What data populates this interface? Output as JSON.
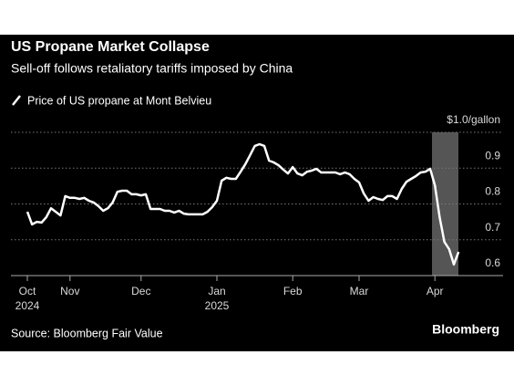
{
  "chart_data": {
    "type": "line",
    "title": "US Propane Market Collapse",
    "subtitle": "Sell-off follows retaliatory tariffs imposed by China",
    "source": "Source: Bloomberg Fair Value",
    "brand": "Bloomberg",
    "categories": [
      "Oct\n2024",
      null,
      null,
      null,
      null,
      null,
      null,
      null,
      null,
      "Nov",
      null,
      null,
      null,
      null,
      null,
      null,
      null,
      null,
      null,
      null,
      null,
      null,
      null,
      null,
      "Dec",
      null,
      null,
      null,
      null,
      null,
      null,
      null,
      null,
      null,
      null,
      null,
      null,
      null,
      null,
      null,
      "Jan\n2025",
      null,
      null,
      null,
      null,
      null,
      null,
      null,
      null,
      null,
      null,
      null,
      null,
      null,
      null,
      null,
      "Feb",
      null,
      null,
      null,
      null,
      null,
      null,
      null,
      null,
      null,
      null,
      null,
      null,
      null,
      "Mar",
      null,
      null,
      null,
      null,
      null,
      null,
      null,
      null,
      null,
      null,
      null,
      null,
      null,
      null,
      null,
      "Apr",
      null,
      null,
      null,
      null,
      null
    ],
    "series": [
      {
        "name": "Price of US propane at Mont Belvieu",
        "color": "#ffffff",
        "values": [
          0.778,
          0.743,
          0.75,
          0.748,
          0.763,
          0.788,
          0.778,
          0.768,
          0.822,
          0.817,
          0.817,
          0.814,
          0.817,
          0.809,
          0.804,
          0.794,
          0.781,
          0.788,
          0.804,
          0.834,
          0.837,
          0.837,
          0.827,
          0.827,
          0.824,
          0.827,
          0.786,
          0.786,
          0.786,
          0.781,
          0.781,
          0.776,
          0.781,
          0.773,
          0.771,
          0.771,
          0.771,
          0.771,
          0.778,
          0.791,
          0.809,
          0.865,
          0.873,
          0.87,
          0.87,
          0.89,
          0.911,
          0.936,
          0.962,
          0.967,
          0.962,
          0.921,
          0.916,
          0.908,
          0.896,
          0.885,
          0.903,
          0.885,
          0.88,
          0.89,
          0.893,
          0.898,
          0.888,
          0.888,
          0.888,
          0.888,
          0.883,
          0.888,
          0.883,
          0.87,
          0.86,
          0.829,
          0.809,
          0.819,
          0.814,
          0.811,
          0.822,
          0.822,
          0.814,
          0.842,
          0.862,
          0.87,
          0.878,
          0.888,
          0.89,
          0.898,
          0.852,
          0.763,
          0.694,
          0.674,
          0.631,
          0.666
        ]
      }
    ],
    "ylim": [
      0.6,
      1.0
    ],
    "yticks": [
      0.6,
      0.7,
      0.8,
      0.9,
      {
        "value": 1.0,
        "label": "$1.0/gallon"
      }
    ],
    "grid": true
  }
}
